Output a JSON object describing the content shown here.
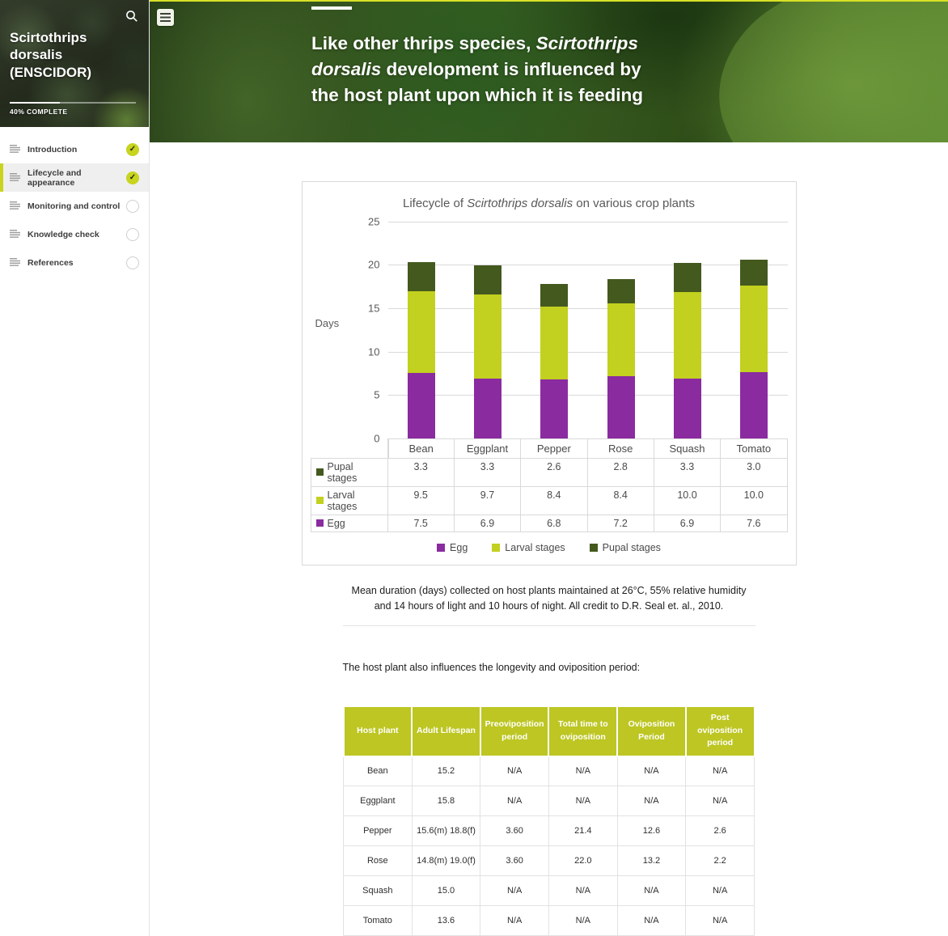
{
  "colors": {
    "accent": "#c8d41e",
    "table_header_green": "#bdc623",
    "egg_purple": "#8a2ba0",
    "larval_green": "#c2d01f",
    "pupal_dark_green": "#44591e",
    "top_accent_line": "#d7e026"
  },
  "sidebar": {
    "course_title": "Scirtothrips dorsalis (ENSCIDOR)",
    "progress_label": "40% COMPLETE",
    "progress_percent": 40,
    "search_icon": "magnifier",
    "items": [
      {
        "label": "Introduction",
        "completed": true,
        "active": false
      },
      {
        "label": "Lifecycle and appearance",
        "completed": true,
        "active": true
      },
      {
        "label": "Monitoring and control",
        "completed": false,
        "active": false
      },
      {
        "label": "Knowledge check",
        "completed": false,
        "active": false
      },
      {
        "label": "References",
        "completed": false,
        "active": false
      }
    ]
  },
  "hero": {
    "menu_icon": "hamburger",
    "heading_segments": [
      {
        "text": "Like other thrips species, ",
        "italic": false
      },
      {
        "text": "Scirtothrips dorsalis",
        "italic": true
      },
      {
        "text": " development is influenced by the host plant upon which it is feeding",
        "italic": false
      }
    ]
  },
  "chart_data": {
    "type": "bar",
    "stacked": true,
    "title_plain": "Lifecycle of Scirtothrips dorsalis on various crop plants",
    "title_segments": [
      {
        "text": "Lifecycle of ",
        "italic": false
      },
      {
        "text": "Scirtothrips dorsalis",
        "italic": true
      },
      {
        "text": " on various crop plants",
        "italic": false
      }
    ],
    "ylabel": "Days",
    "ylim": [
      0,
      25
    ],
    "yticks": [
      0,
      5,
      10,
      15,
      20,
      25
    ],
    "grid": true,
    "legend_position": "bottom",
    "legend_order": [
      "Egg",
      "Larval stages",
      "Pupal stages"
    ],
    "data_table_row_order": [
      "Pupal stages",
      "Larval stages",
      "Egg"
    ],
    "categories": [
      "Bean",
      "Eggplant",
      "Pepper",
      "Rose",
      "Squash",
      "Tomato"
    ],
    "series": [
      {
        "name": "Egg",
        "color": "#8a2ba0",
        "values": [
          7.5,
          6.9,
          6.8,
          7.2,
          6.9,
          7.6
        ]
      },
      {
        "name": "Larval stages",
        "color": "#c2d01f",
        "values": [
          9.5,
          9.7,
          8.4,
          8.4,
          10.0,
          10.0
        ]
      },
      {
        "name": "Pupal stages",
        "color": "#44591e",
        "values": [
          3.3,
          3.3,
          2.6,
          2.8,
          3.3,
          3.0
        ]
      }
    ]
  },
  "content": {
    "caption": "Mean duration (days) collected on host plants maintained at 26°C, 55% relative humidity and 14 hours of light and 10 hours of night. All credit to D.R. Seal et. al., 2010.",
    "table_intro": "The host plant also influences the longevity and oviposition period:",
    "host_table": {
      "headers": [
        "Host plant",
        "Adult Lifespan",
        "Preoviposition period",
        "Total time to oviposition",
        "Oviposition Period",
        "Post oviposition period"
      ],
      "rows": [
        [
          "Bean",
          "15.2",
          "N/A",
          "N/A",
          "N/A",
          "N/A"
        ],
        [
          "Eggplant",
          "15.8",
          "N/A",
          "N/A",
          "N/A",
          "N/A"
        ],
        [
          "Pepper",
          "15.6(m) 18.8(f)",
          "3.60",
          "21.4",
          "12.6",
          "2.6"
        ],
        [
          "Rose",
          "14.8(m) 19.0(f)",
          "3.60",
          "22.0",
          "13.2",
          "2.2"
        ],
        [
          "Squash",
          "15.0",
          "N/A",
          "N/A",
          "N/A",
          "N/A"
        ],
        [
          "Tomato",
          "13.6",
          "N/A",
          "N/A",
          "N/A",
          "N/A"
        ]
      ]
    }
  }
}
